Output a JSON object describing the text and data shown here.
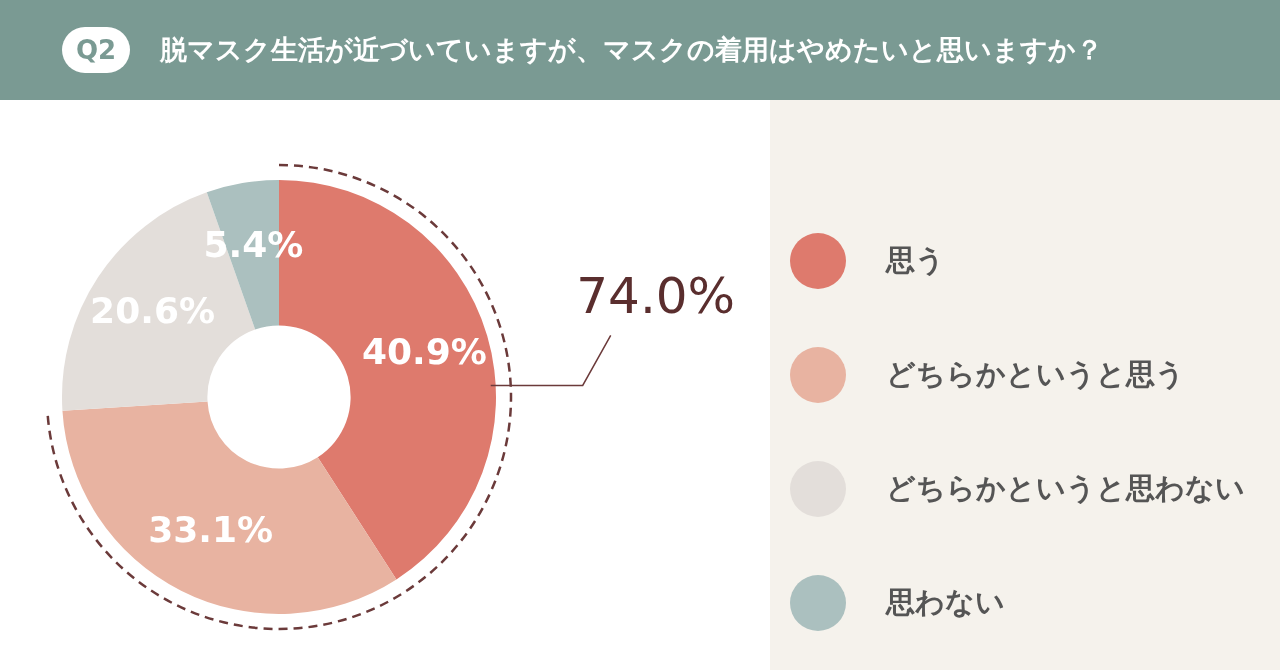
{
  "chart_data": {
    "type": "donut",
    "title": "Q2 脱マスク生活が近づいていますが、マスクの着用はやめたいと思いますか？",
    "categories": [
      "思う",
      "どちらかというと思う",
      "どちらかというと思わない",
      "思わない"
    ],
    "values": [
      40.9,
      33.1,
      20.6,
      5.4
    ],
    "colors": [
      "#de7a6d",
      "#e8b3a1",
      "#e3deda",
      "#abc0bf"
    ],
    "value_labels": [
      "40.9%",
      "33.1%",
      "20.6%",
      "5.4%"
    ],
    "legend": "right",
    "annotations": [
      "74.0%"
    ]
  }
}
